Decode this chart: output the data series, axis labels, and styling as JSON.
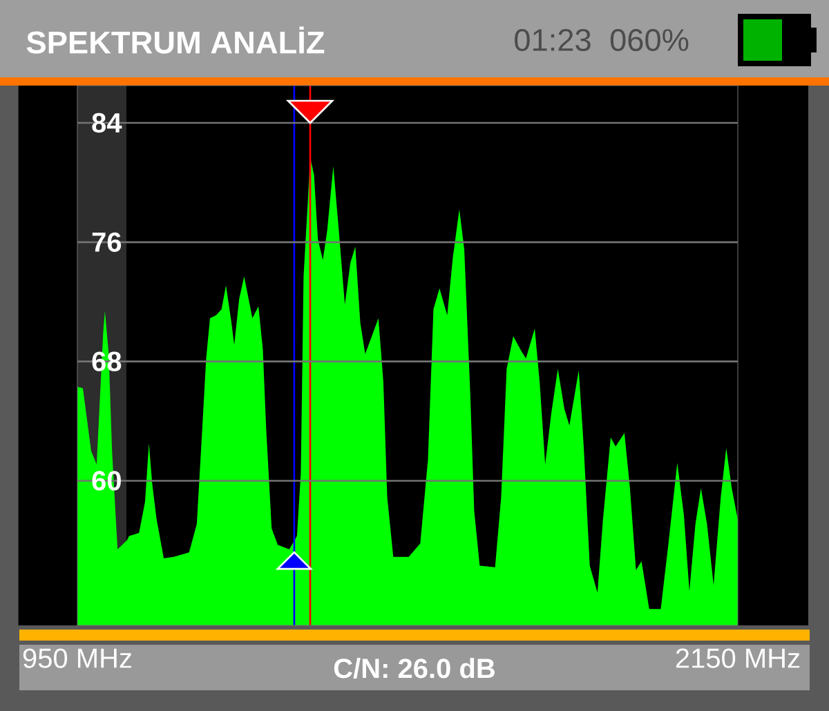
{
  "chart_data": {
    "type": "area",
    "title": "SPEKTRUM ANALİZ",
    "annotations": [
      "01:23",
      "060%",
      "C/N: 26.0 dB"
    ],
    "x": [
      950,
      960,
      975,
      985,
      997,
      1000,
      1007,
      1013,
      1023,
      1040,
      1044,
      1062,
      1073,
      1080,
      1086,
      1094,
      1107,
      1125,
      1153,
      1167,
      1178,
      1184,
      1191,
      1202,
      1212,
      1220,
      1230,
      1235,
      1244,
      1253,
      1268,
      1279,
      1287,
      1293,
      1303,
      1314,
      1335,
      1349,
      1356,
      1361,
      1369,
      1373,
      1380,
      1387,
      1396,
      1404,
      1415,
      1425,
      1436,
      1446,
      1455,
      1464,
      1473,
      1485,
      1497,
      1506,
      1513,
      1524,
      1552,
      1573,
      1587,
      1597,
      1608,
      1622,
      1632,
      1644,
      1653,
      1664,
      1671,
      1681,
      1709,
      1720,
      1730,
      1742,
      1755,
      1765,
      1781,
      1790,
      1800,
      1811,
      1823,
      1835,
      1844,
      1861,
      1870,
      1881,
      1895,
      1905,
      1919,
      1928,
      1944,
      1954,
      1965,
      1975,
      1989,
      2010,
      2024,
      2040,
      2052,
      2062,
      2073,
      2083,
      2094,
      2106,
      2119,
      2129,
      2139,
      2150
    ],
    "series": [
      {
        "color": "#00ff00",
        "values": [
          66.3,
          66.2,
          62.0,
          61.1,
          70.0,
          71.4,
          68.5,
          62.0,
          55.4,
          56.0,
          56.3,
          56.5,
          58.6,
          62.5,
          59.8,
          57.4,
          54.8,
          54.9,
          55.2,
          57.1,
          64.2,
          68.2,
          70.9,
          71.1,
          71.5,
          73.1,
          70.6,
          69.1,
          72.2,
          73.7,
          70.9,
          71.7,
          68.8,
          63.5,
          56.8,
          55.7,
          55.4,
          56.3,
          60.5,
          73.7,
          78.9,
          81.7,
          80.5,
          76.2,
          74.8,
          76.8,
          81.1,
          76.8,
          71.8,
          74.6,
          75.7,
          70.6,
          68.5,
          69.7,
          70.9,
          66.6,
          58.9,
          54.9,
          54.9,
          55.8,
          61.4,
          71.5,
          72.9,
          71.1,
          74.9,
          78.2,
          75.5,
          65.7,
          58.0,
          54.3,
          54.2,
          58.9,
          67.5,
          69.7,
          68.8,
          68.2,
          70.2,
          66.6,
          61.1,
          64.5,
          67.5,
          64.8,
          63.7,
          67.4,
          62.3,
          54.3,
          52.5,
          57.4,
          62.9,
          62.3,
          63.2,
          59.5,
          54.0,
          54.6,
          51.4,
          51.4,
          55.8,
          61.2,
          57.7,
          52.6,
          57.1,
          59.5,
          57.1,
          53.0,
          58.9,
          62.2,
          59.5,
          57.4
        ]
      }
    ],
    "xlim": [
      950,
      2150
    ],
    "xticks": [
      {
        "value": 950,
        "label": "950 MHz"
      },
      {
        "value": 2150,
        "label": "2150 MHz"
      }
    ],
    "ylim": [
      50.3,
      86.5
    ],
    "yticks": [
      60,
      68,
      76,
      84
    ],
    "grid": "y",
    "ref_lines": [
      {
        "axis": "x",
        "value": 1344,
        "color": "#0000ff"
      },
      {
        "axis": "x",
        "value": 1373,
        "color": "#ff0000"
      }
    ],
    "bands": [
      {
        "axis": "x",
        "from": 950,
        "to": 1039,
        "color": "#2d2d2d"
      }
    ]
  }
}
